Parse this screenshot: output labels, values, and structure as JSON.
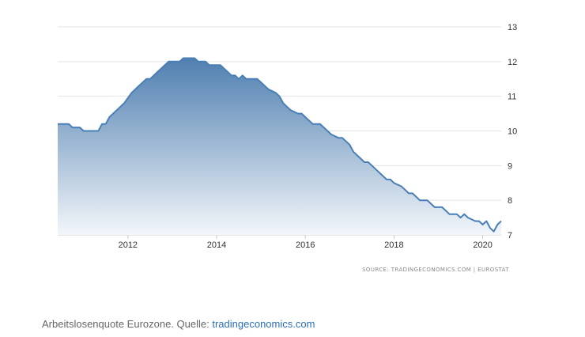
{
  "chart_data": {
    "type": "area",
    "title": "",
    "xlabel": "",
    "ylabel": "",
    "ylim": [
      7,
      13
    ],
    "xlim": [
      "2010-06",
      "2020-06"
    ],
    "y_ticks": [
      "7",
      "8",
      "9",
      "10",
      "11",
      "12",
      "13"
    ],
    "x_ticks": [
      {
        "label": "2012",
        "date": "2012-01"
      },
      {
        "label": "2014",
        "date": "2014-01"
      },
      {
        "label": "2016",
        "date": "2016-01"
      },
      {
        "label": "2018",
        "date": "2018-01"
      },
      {
        "label": "2020",
        "date": "2020-01"
      }
    ],
    "grid": true,
    "y_axis_side": "right",
    "fill_color_top": "#4f7fb0",
    "fill_color_bottom": "#f3f6fa",
    "line_color": "#4a7fb5",
    "series": [
      {
        "points": [
          [
            "2010-06",
            10.2
          ],
          [
            "2010-09",
            10.2
          ],
          [
            "2010-10",
            10.1
          ],
          [
            "2010-12",
            10.1
          ],
          [
            "2011-01",
            10.0
          ],
          [
            "2011-05",
            10.0
          ],
          [
            "2011-06",
            10.2
          ],
          [
            "2011-07",
            10.2
          ],
          [
            "2011-08",
            10.4
          ],
          [
            "2011-10",
            10.6
          ],
          [
            "2011-12",
            10.8
          ],
          [
            "2012-02",
            11.1
          ],
          [
            "2012-04",
            11.3
          ],
          [
            "2012-06",
            11.5
          ],
          [
            "2012-07",
            11.5
          ],
          [
            "2012-09",
            11.7
          ],
          [
            "2012-11",
            11.9
          ],
          [
            "2012-12",
            12.0
          ],
          [
            "2013-03",
            12.0
          ],
          [
            "2013-04",
            12.1
          ],
          [
            "2013-07",
            12.1
          ],
          [
            "2013-08",
            12.0
          ],
          [
            "2013-10",
            12.0
          ],
          [
            "2013-11",
            11.9
          ],
          [
            "2014-02",
            11.9
          ],
          [
            "2014-03",
            11.8
          ],
          [
            "2014-04",
            11.7
          ],
          [
            "2014-05",
            11.6
          ],
          [
            "2014-06",
            11.6
          ],
          [
            "2014-07",
            11.5
          ],
          [
            "2014-08",
            11.6
          ],
          [
            "2014-09",
            11.5
          ],
          [
            "2014-12",
            11.5
          ],
          [
            "2015-01",
            11.4
          ],
          [
            "2015-03",
            11.2
          ],
          [
            "2015-05",
            11.1
          ],
          [
            "2015-06",
            11.0
          ],
          [
            "2015-07",
            10.8
          ],
          [
            "2015-09",
            10.6
          ],
          [
            "2015-11",
            10.5
          ],
          [
            "2015-12",
            10.5
          ],
          [
            "2016-01",
            10.4
          ],
          [
            "2016-03",
            10.2
          ],
          [
            "2016-05",
            10.2
          ],
          [
            "2016-06",
            10.1
          ],
          [
            "2016-08",
            9.9
          ],
          [
            "2016-10",
            9.8
          ],
          [
            "2016-11",
            9.8
          ],
          [
            "2016-12",
            9.7
          ],
          [
            "2017-01",
            9.6
          ],
          [
            "2017-02",
            9.4
          ],
          [
            "2017-04",
            9.2
          ],
          [
            "2017-05",
            9.1
          ],
          [
            "2017-06",
            9.1
          ],
          [
            "2017-08",
            8.9
          ],
          [
            "2017-10",
            8.7
          ],
          [
            "2017-11",
            8.6
          ],
          [
            "2017-12",
            8.6
          ],
          [
            "2018-01",
            8.5
          ],
          [
            "2018-03",
            8.4
          ],
          [
            "2018-05",
            8.2
          ],
          [
            "2018-06",
            8.2
          ],
          [
            "2018-08",
            8.0
          ],
          [
            "2018-10",
            8.0
          ],
          [
            "2018-12",
            7.8
          ],
          [
            "2019-02",
            7.8
          ],
          [
            "2019-04",
            7.6
          ],
          [
            "2019-06",
            7.6
          ],
          [
            "2019-07",
            7.5
          ],
          [
            "2019-08",
            7.6
          ],
          [
            "2019-09",
            7.5
          ],
          [
            "2019-11",
            7.4
          ],
          [
            "2019-12",
            7.4
          ],
          [
            "2020-01",
            7.3
          ],
          [
            "2020-02",
            7.4
          ],
          [
            "2020-03",
            7.2
          ],
          [
            "2020-04",
            7.1
          ],
          [
            "2020-05",
            7.3
          ],
          [
            "2020-06",
            7.4
          ]
        ]
      }
    ],
    "source_text": "SOURCE: TRADINGECONOMICS.COM | EUROSTAT"
  },
  "caption": {
    "text": "Arbeitslosenquote Eurozone. Quelle: ",
    "link": "tradingeconomics.com"
  }
}
